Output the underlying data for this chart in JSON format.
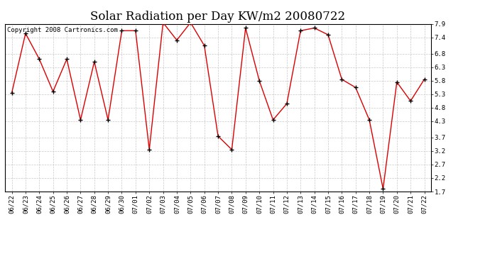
{
  "title": "Solar Radiation per Day KW/m2 20080722",
  "copyright": "Copyright 2008 Cartronics.com",
  "labels": [
    "06/22",
    "06/23",
    "06/24",
    "06/25",
    "06/26",
    "06/27",
    "06/28",
    "06/29",
    "06/30",
    "07/01",
    "07/02",
    "07/03",
    "07/04",
    "07/05",
    "07/06",
    "07/07",
    "07/08",
    "07/09",
    "07/10",
    "07/11",
    "07/12",
    "07/13",
    "07/14",
    "07/15",
    "07/16",
    "07/17",
    "07/18",
    "07/19",
    "07/20",
    "07/21",
    "07/22"
  ],
  "values": [
    5.35,
    7.55,
    6.6,
    5.4,
    6.6,
    4.35,
    6.5,
    4.35,
    7.65,
    7.65,
    3.25,
    7.95,
    7.3,
    7.95,
    7.1,
    3.75,
    3.25,
    7.75,
    5.8,
    4.35,
    4.95,
    7.65,
    7.75,
    7.5,
    5.85,
    5.55,
    4.35,
    1.8,
    5.75,
    5.05,
    5.85
  ],
  "line_color": "#dd0000",
  "marker": "+",
  "marker_color": "#000000",
  "marker_size": 5,
  "bg_color": "#ffffff",
  "grid_color": "#bbbbbb",
  "ylim_min": 1.7,
  "ylim_max": 7.9,
  "yticks": [
    1.7,
    2.2,
    2.7,
    3.2,
    3.7,
    4.3,
    4.8,
    5.3,
    5.8,
    6.3,
    6.8,
    7.4,
    7.9
  ],
  "title_fontsize": 12,
  "copyright_fontsize": 6.5,
  "tick_fontsize": 6.5
}
